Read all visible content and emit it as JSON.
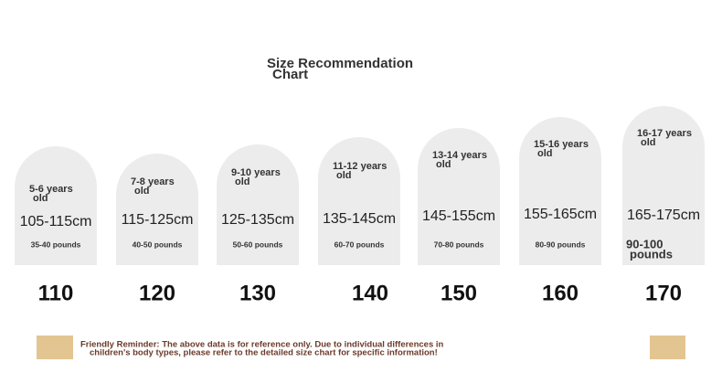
{
  "title": [
    "Size Recommendation",
    "Chart"
  ],
  "cards": [
    {
      "age": [
        "5-6 years",
        "old"
      ],
      "height": "105-115cm",
      "weight": [
        "35-40 pounds"
      ],
      "size": "110"
    },
    {
      "age": [
        "7-8 years",
        "old"
      ],
      "height": "115-125cm",
      "weight": [
        "40-50 pounds"
      ],
      "size": "120"
    },
    {
      "age": [
        "9-10 years",
        "old"
      ],
      "height": "125-135cm",
      "weight": [
        "50-60 pounds"
      ],
      "size": "130"
    },
    {
      "age": [
        "11-12 years",
        "old"
      ],
      "height": "135-145cm",
      "weight": [
        "60-70 pounds"
      ],
      "size": "140"
    },
    {
      "age": [
        "13-14 years",
        "old"
      ],
      "height": "145-155cm",
      "weight": [
        "70-80 pounds"
      ],
      "size": "150"
    },
    {
      "age": [
        "15-16 years",
        "old"
      ],
      "height": "155-165cm",
      "weight": [
        "80-90 pounds"
      ],
      "size": "160"
    },
    {
      "age": [
        "16-17 years",
        "old"
      ],
      "height": "165-175cm",
      "weight": [
        "90-100",
        "pounds"
      ],
      "size": "170"
    }
  ],
  "footer": [
    "Friendly Reminder: The above data is for reference only. Due to individual differences in",
    "children's body types, please refer to the detailed size chart for specific information!"
  ]
}
